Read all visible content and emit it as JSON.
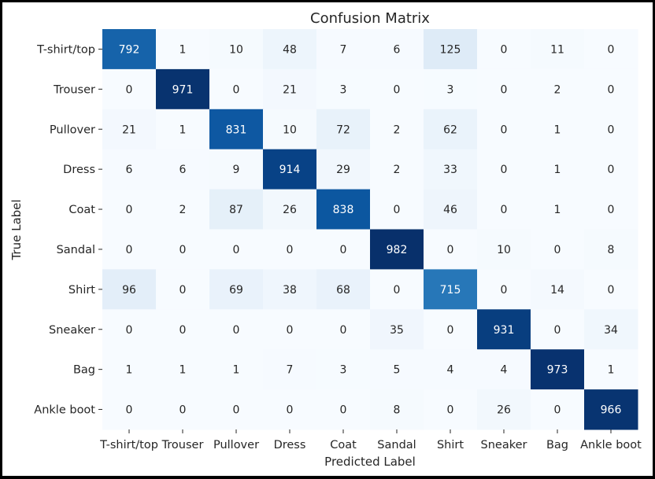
{
  "chart_data": {
    "type": "heatmap",
    "title": "Confusion Matrix",
    "xlabel": "Predicted Label",
    "ylabel": "True Label",
    "x_categories": [
      "T-shirt/top",
      "Trouser",
      "Pullover",
      "Dress",
      "Coat",
      "Sandal",
      "Shirt",
      "Sneaker",
      "Bag",
      "Ankle boot"
    ],
    "y_categories": [
      "T-shirt/top",
      "Trouser",
      "Pullover",
      "Dress",
      "Coat",
      "Sandal",
      "Shirt",
      "Sneaker",
      "Bag",
      "Ankle boot"
    ],
    "values": [
      [
        792,
        1,
        10,
        48,
        7,
        6,
        125,
        0,
        11,
        0
      ],
      [
        0,
        971,
        0,
        21,
        3,
        0,
        3,
        0,
        2,
        0
      ],
      [
        21,
        1,
        831,
        10,
        72,
        2,
        62,
        0,
        1,
        0
      ],
      [
        6,
        6,
        9,
        914,
        29,
        2,
        33,
        0,
        1,
        0
      ],
      [
        0,
        2,
        87,
        26,
        838,
        0,
        46,
        0,
        1,
        0
      ],
      [
        0,
        0,
        0,
        0,
        0,
        982,
        0,
        10,
        0,
        8
      ],
      [
        96,
        0,
        69,
        38,
        68,
        0,
        715,
        0,
        14,
        0
      ],
      [
        0,
        0,
        0,
        0,
        0,
        35,
        0,
        931,
        0,
        34
      ],
      [
        1,
        1,
        1,
        7,
        3,
        5,
        4,
        4,
        973,
        1
      ],
      [
        0,
        0,
        0,
        0,
        0,
        8,
        0,
        26,
        0,
        966
      ]
    ],
    "vmin": 0,
    "vmax": 982,
    "colormap": "Blues",
    "colorbar": false,
    "grid": false
  },
  "colors": {
    "background": "#ffffff",
    "border": "#000000",
    "text_dark": "#262626",
    "text_light": "#ffffff",
    "blues_ramp": [
      "#f7fbff",
      "#deebf7",
      "#c6dbef",
      "#9ecae1",
      "#6baed6",
      "#4292c6",
      "#2171b5",
      "#08519c",
      "#08306b"
    ]
  }
}
